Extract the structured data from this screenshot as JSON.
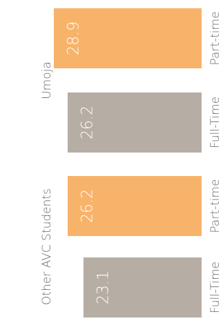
{
  "chart_data": {
    "type": "bar",
    "orientation": "rotated-90-counterclockwise",
    "title": "",
    "groups": [
      {
        "name": "Umoja",
        "bars": [
          {
            "category": "Part-time",
            "value": 28.9,
            "color": "#F8B36A"
          },
          {
            "category": "Full-Time",
            "value": 26.2,
            "color": "#B6ADA5"
          }
        ]
      },
      {
        "name": "Other AVC Students",
        "bars": [
          {
            "category": "Part-time",
            "value": 26.2,
            "color": "#F8B36A"
          },
          {
            "category": "Full-Time",
            "value": 23.1,
            "color": "#B6ADA5"
          }
        ]
      }
    ],
    "colors": {
      "Part-time": "#F8B36A",
      "Full-Time": "#B6ADA5",
      "value_label": "#FFFFFF",
      "axis_text": "#666666"
    },
    "ylim": [
      0,
      28.9
    ],
    "grid": false,
    "legend": "none"
  }
}
